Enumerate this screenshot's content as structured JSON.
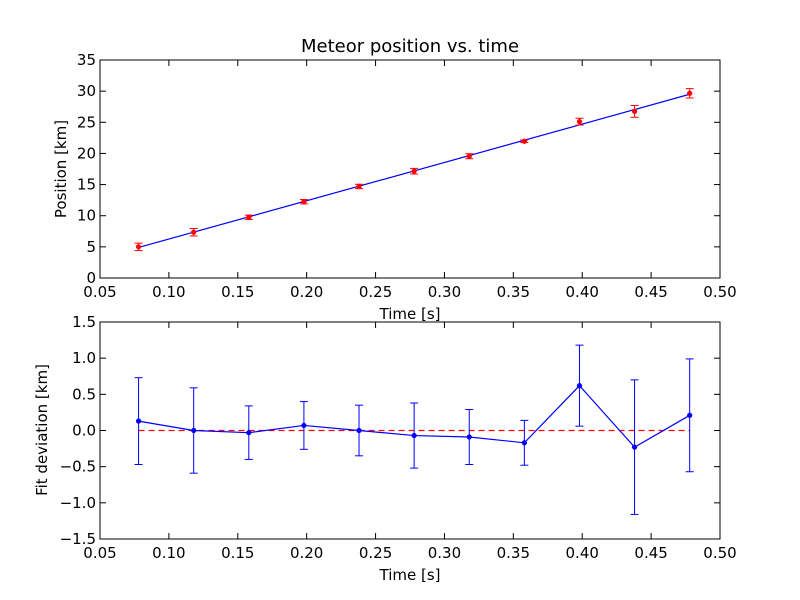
{
  "chart_data": [
    {
      "type": "scatter",
      "title": "Meteor position vs. time",
      "xlabel": "Time [s]",
      "ylabel": "Position [km]",
      "xlim": [
        0.05,
        0.5
      ],
      "ylim": [
        0,
        35
      ],
      "xticks": [
        "0.05",
        "0.10",
        "0.15",
        "0.20",
        "0.25",
        "0.30",
        "0.35",
        "0.40",
        "0.45",
        "0.50"
      ],
      "yticks": [
        "0",
        "5",
        "10",
        "15",
        "20",
        "25",
        "30",
        "35"
      ],
      "grid": false,
      "series": [
        {
          "kind": "points_with_errorbars",
          "color": "#ff0000",
          "errorbar_color": "#ff0000",
          "x": [
            0.078,
            0.118,
            0.158,
            0.198,
            0.238,
            0.278,
            0.318,
            0.358,
            0.398,
            0.438,
            0.478
          ],
          "y": [
            5.0,
            7.35,
            9.75,
            12.25,
            14.7,
            17.15,
            19.55,
            21.95,
            25.1,
            26.75,
            29.65
          ],
          "yerr": [
            0.6,
            0.6,
            0.35,
            0.35,
            0.35,
            0.45,
            0.4,
            0.2,
            0.55,
            0.95,
            0.75
          ]
        },
        {
          "kind": "fit_line",
          "color": "#0000ff",
          "x": [
            0.078,
            0.478
          ],
          "y": [
            4.9,
            29.5
          ]
        }
      ]
    },
    {
      "type": "line",
      "xlabel": "Time [s]",
      "ylabel": "Fit deviation [km]",
      "xlim": [
        0.05,
        0.5
      ],
      "ylim": [
        -1.5,
        1.5
      ],
      "xticks": [
        "0.05",
        "0.10",
        "0.15",
        "0.20",
        "0.25",
        "0.30",
        "0.35",
        "0.40",
        "0.45",
        "0.50"
      ],
      "yticks": [
        "−1.5",
        "−1.0",
        "−0.5",
        "0.0",
        "0.5",
        "1.0",
        "1.5"
      ],
      "grid": false,
      "series": [
        {
          "kind": "line_with_errorbars",
          "color": "#0000ff",
          "x": [
            0.078,
            0.118,
            0.158,
            0.198,
            0.238,
            0.278,
            0.318,
            0.358,
            0.398,
            0.438,
            0.478
          ],
          "y": [
            0.13,
            0.0,
            -0.03,
            0.07,
            0.0,
            -0.07,
            -0.09,
            -0.17,
            0.62,
            -0.23,
            0.21
          ],
          "yerr": [
            0.6,
            0.59,
            0.37,
            0.33,
            0.35,
            0.45,
            0.38,
            0.31,
            0.56,
            0.93,
            0.78
          ]
        },
        {
          "kind": "reference_line",
          "color": "#ff0000",
          "style": "dashed",
          "x": [
            0.078,
            0.478
          ],
          "y": [
            0.0,
            0.0
          ]
        }
      ]
    }
  ]
}
